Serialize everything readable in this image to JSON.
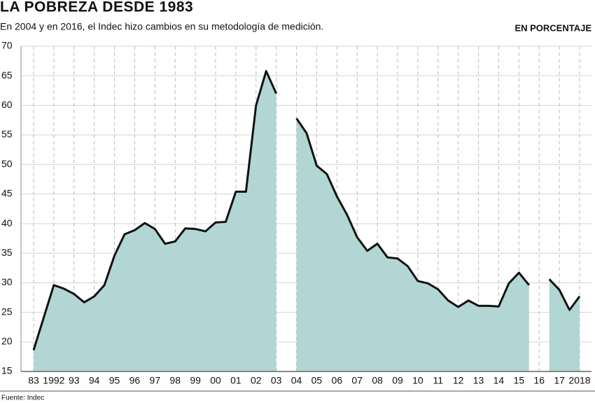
{
  "chart_data": {
    "type": "area",
    "title": "LA POBREZA DESDE 1983",
    "subtitle": "En 2004 y en 2016, el Indec hizo cambios en su metodología de medición.",
    "unit_label": "EN PORCENTAJE",
    "source": "Fuente: Indec",
    "categories": [
      "83",
      null,
      "1992",
      null,
      "93",
      null,
      "94",
      null,
      "95",
      null,
      "96",
      null,
      "97",
      null,
      "98",
      null,
      "99",
      null,
      "00",
      null,
      "01",
      null,
      "02",
      null,
      "03",
      null,
      "04",
      null,
      "05",
      null,
      "06",
      null,
      "07",
      null,
      "08",
      null,
      "09",
      null,
      "10",
      null,
      "11",
      null,
      "12",
      null,
      "13",
      null,
      "14",
      null,
      "15",
      null,
      "16",
      null,
      "17",
      null,
      "2018"
    ],
    "values": [
      18.6,
      24.1,
      29.6,
      29.0,
      28.1,
      26.7,
      27.7,
      29.6,
      34.6,
      38.2,
      38.9,
      40.1,
      39.1,
      36.6,
      37.0,
      39.2,
      39.1,
      38.7,
      40.2,
      40.3,
      45.4,
      45.4,
      60.0,
      65.8,
      62.0,
      null,
      57.8,
      55.3,
      49.8,
      48.4,
      44.6,
      41.5,
      37.7,
      35.4,
      36.6,
      34.3,
      34.1,
      32.8,
      30.3,
      29.9,
      28.9,
      27.0,
      25.9,
      27.0,
      26.1,
      26.1,
      26.0,
      29.9,
      31.7,
      29.6,
      null,
      30.6,
      28.8,
      25.4,
      27.7
    ],
    "color": "#b2d6d4",
    "line_color": "#111111",
    "ylim": [
      15,
      70
    ],
    "yticks": [
      15,
      20,
      25,
      30,
      35,
      40,
      45,
      50,
      55,
      60,
      65,
      70
    ],
    "grid": true
  }
}
